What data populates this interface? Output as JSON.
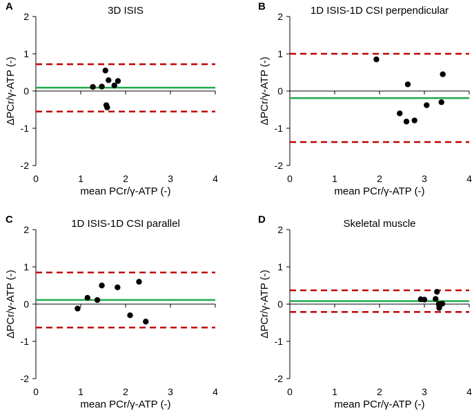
{
  "colors": {
    "mean_line": "#1faa4a",
    "limit_line": "#c00000",
    "points": "#000000",
    "axis": "#000000"
  },
  "chart_data": [
    {
      "type": "scatter",
      "panel_label": "A",
      "title": "3D ISIS",
      "xlabel": "mean PCr/γ-ATP (-)",
      "ylabel": "ΔPCr/γ-ATP (-)",
      "xlim": [
        0,
        4
      ],
      "ylim": [
        -2,
        2
      ],
      "xticks": [
        "0",
        "1",
        "2",
        "3",
        "4"
      ],
      "yticks": [
        "-2",
        "-1",
        "0",
        "1",
        "2"
      ],
      "mean_bias": 0.09,
      "upper_limit": 0.72,
      "lower_limit": -0.55,
      "points": [
        [
          1.27,
          0.11
        ],
        [
          1.47,
          0.12
        ],
        [
          1.55,
          0.55
        ],
        [
          1.57,
          -0.38
        ],
        [
          1.59,
          -0.44
        ],
        [
          1.62,
          0.29
        ],
        [
          1.75,
          0.15
        ],
        [
          1.83,
          0.27
        ]
      ]
    },
    {
      "type": "scatter",
      "panel_label": "B",
      "title": "1D ISIS-1D CSI perpendicular",
      "xlabel": "mean PCr/γ-ATP (-)",
      "ylabel": "ΔPCr/γ-ATP (-)",
      "xlim": [
        0,
        4
      ],
      "ylim": [
        -2,
        2
      ],
      "xticks": [
        "0",
        "1",
        "2",
        "3",
        "4"
      ],
      "yticks": [
        "-2",
        "-1",
        "0",
        "1",
        "2"
      ],
      "mean_bias": -0.19,
      "upper_limit": 1.0,
      "lower_limit": -1.37,
      "points": [
        [
          1.93,
          0.85
        ],
        [
          2.45,
          -0.6
        ],
        [
          2.6,
          -0.82
        ],
        [
          2.63,
          0.18
        ],
        [
          2.78,
          -0.79
        ],
        [
          3.05,
          -0.38
        ],
        [
          3.38,
          -0.3
        ],
        [
          3.41,
          0.45
        ]
      ]
    },
    {
      "type": "scatter",
      "panel_label": "C",
      "title": "1D ISIS-1D CSI parallel",
      "xlabel": "mean PCr/γ-ATP (-)",
      "ylabel": "ΔPCr/γ-ATP (-)",
      "xlim": [
        0,
        4
      ],
      "ylim": [
        -2,
        2
      ],
      "xticks": [
        "0",
        "1",
        "2",
        "3",
        "4"
      ],
      "yticks": [
        "-2",
        "-1",
        "0",
        "1",
        "2"
      ],
      "mean_bias": 0.11,
      "upper_limit": 0.85,
      "lower_limit": -0.63,
      "points": [
        [
          0.93,
          -0.12
        ],
        [
          1.15,
          0.17
        ],
        [
          1.37,
          0.11
        ],
        [
          1.47,
          0.5
        ],
        [
          1.82,
          0.45
        ],
        [
          2.1,
          -0.3
        ],
        [
          2.3,
          0.6
        ],
        [
          2.45,
          -0.47
        ]
      ]
    },
    {
      "type": "scatter",
      "panel_label": "D",
      "title": "Skeletal muscle",
      "xlabel": "mean PCr/γ-ATP (-)",
      "ylabel": "ΔPCr/γ-ATP (-)",
      "xlim": [
        0,
        4
      ],
      "ylim": [
        -2,
        2
      ],
      "xticks": [
        "0",
        "1",
        "2",
        "3",
        "4"
      ],
      "yticks": [
        "-2",
        "-1",
        "0",
        "1",
        "2"
      ],
      "mean_bias": 0.08,
      "upper_limit": 0.37,
      "lower_limit": -0.21,
      "points": [
        [
          2.92,
          0.13
        ],
        [
          3.0,
          0.12
        ],
        [
          3.25,
          0.14
        ],
        [
          3.28,
          0.33
        ],
        [
          3.32,
          0.0
        ],
        [
          3.33,
          -0.1
        ],
        [
          3.35,
          -0.02
        ],
        [
          3.4,
          0.01
        ]
      ]
    }
  ]
}
